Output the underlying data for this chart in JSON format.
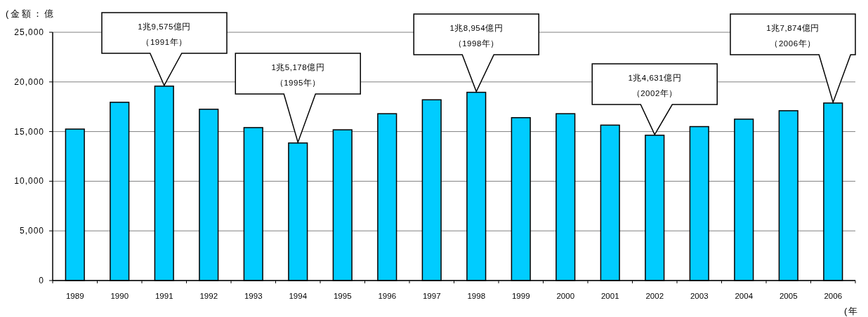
{
  "chart_data": {
    "type": "bar",
    "ylabel": "(金額：億",
    "xlabel": "(年",
    "categories": [
      "1989",
      "1990",
      "1991",
      "1992",
      "1993",
      "1994",
      "1995",
      "1996",
      "1997",
      "1998",
      "1999",
      "2000",
      "2001",
      "2002",
      "2003",
      "2004",
      "2005",
      "2006"
    ],
    "values": [
      15250,
      17950,
      19575,
      17250,
      15400,
      13850,
      15178,
      16800,
      18200,
      18954,
      16400,
      16800,
      15650,
      14631,
      15500,
      16250,
      17100,
      17874
    ],
    "color": "#00ccff",
    "ylim": [
      0,
      25000
    ],
    "yticks": [
      {
        "value": 0,
        "label": "0"
      },
      {
        "value": 5000,
        "label": "5,000"
      },
      {
        "value": 10000,
        "label": "10,000"
      },
      {
        "value": 15000,
        "label": "15,000"
      },
      {
        "value": 20000,
        "label": "20,000"
      },
      {
        "value": 25000,
        "label": "25,000"
      }
    ],
    "grid": "y",
    "annotations": [
      "1兆9,575億円（1991年）",
      "1兆5,178億円（1995年）",
      "1兆8,954億円（1998年）",
      "1兆4,631億円（2002年）",
      "1兆7,874億円（2006年）"
    ]
  }
}
